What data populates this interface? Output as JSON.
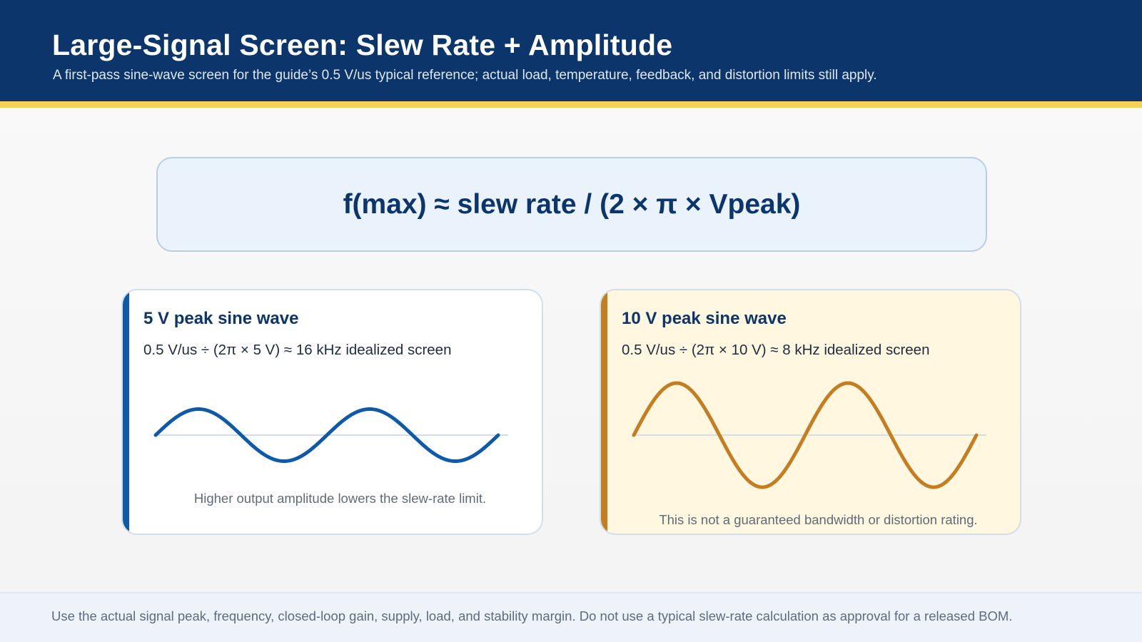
{
  "header": {
    "title": "Large-Signal Screen: Slew Rate + Amplitude",
    "subtitle": "A first-pass sine-wave screen for the guide’s 0.5 V/us typical reference; actual load, temperature, feedback, and distortion limits still apply."
  },
  "formula": "f(max) ≈ slew rate / (2 × π × Vpeak)",
  "cards": [
    {
      "title": "5 V peak sine wave",
      "formula": "0.5 V/us ÷ (2π × 5 V) ≈ 16 kHz idealized screen",
      "note": "Higher output amplitude lowers the slew-rate limit.",
      "peak_volts": 5,
      "cycles": 2,
      "wave_color": "#0f5aa8"
    },
    {
      "title": "10 V peak sine wave",
      "formula": "0.5 V/us ÷ (2π × 10 V) ≈ 8 kHz idealized screen",
      "note": "This is not a guaranteed bandwidth or distortion rating.",
      "peak_volts": 10,
      "cycles": 2,
      "wave_color": "#c47e21"
    }
  ],
  "footer": "Use the actual signal peak, frequency, closed-loop gain, supply, load, and stability margin. Do not use a typical slew-rate calculation as approval for a released BOM.",
  "colors": {
    "header_bg": "#0b356b",
    "accent_stripe": "#f7d354",
    "axis_line": "#d5dde8"
  }
}
